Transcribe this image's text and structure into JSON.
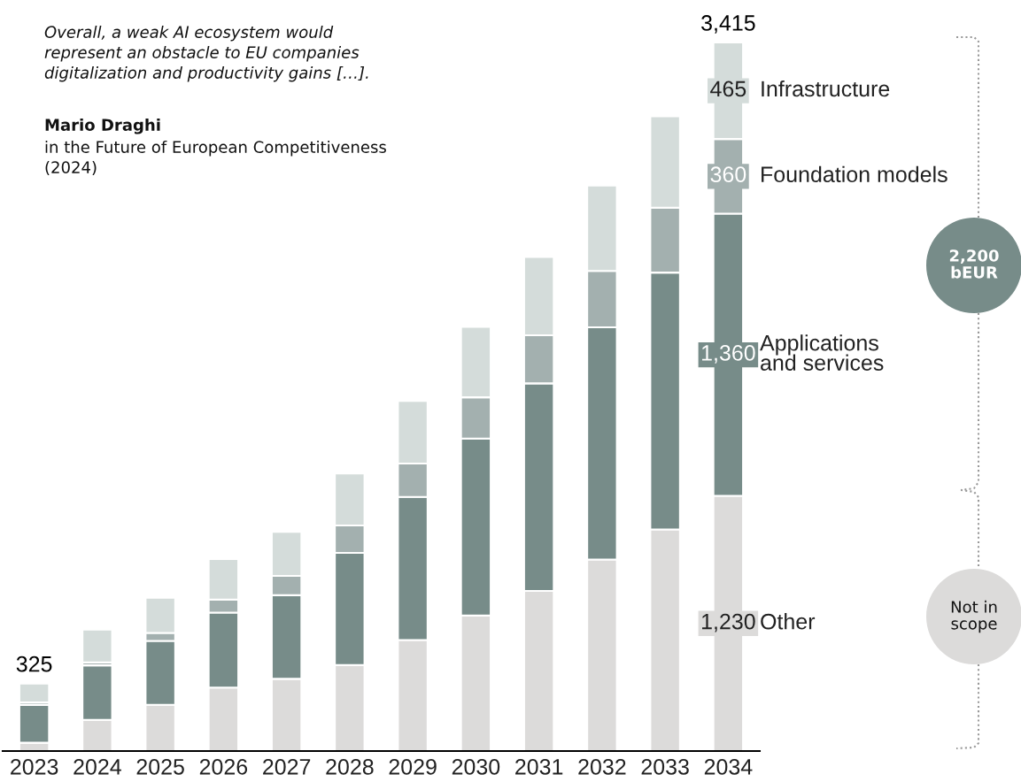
{
  "chart_data": {
    "type": "bar",
    "stacked": true,
    "categories": [
      "2023",
      "2024",
      "2025",
      "2026",
      "2027",
      "2028",
      "2029",
      "2030",
      "2031",
      "2032",
      "2033",
      "2034"
    ],
    "series": [
      {
        "name": "Other",
        "color": "#dcdbda",
        "values": [
          40,
          150,
          223,
          306,
          348,
          415,
          535,
          653,
          772,
          923,
          1068,
          1230
        ],
        "value_labels": [
          null,
          null,
          null,
          null,
          null,
          null,
          null,
          null,
          null,
          null,
          null,
          "1,230"
        ]
      },
      {
        "name": "Applications\nand services",
        "color": "#778c89",
        "values": [
          182,
          263,
          308,
          361,
          403,
          540,
          690,
          853,
          1000,
          1119,
          1238,
          1360
        ],
        "value_labels": [
          null,
          null,
          null,
          null,
          null,
          null,
          null,
          null,
          null,
          null,
          null,
          "1,360"
        ]
      },
      {
        "name": "Foundation models",
        "color": "#a3b0af",
        "values": [
          12,
          14,
          38,
          63,
          93,
          132,
          161,
          199,
          232,
          272,
          313,
          360
        ],
        "value_labels": [
          null,
          null,
          null,
          null,
          null,
          null,
          null,
          null,
          null,
          null,
          null,
          "360"
        ]
      },
      {
        "name": "Infrastructure",
        "color": "#d4dcda",
        "values": [
          91,
          158,
          170,
          195,
          213,
          251,
          302,
          340,
          377,
          412,
          440,
          465
        ],
        "value_labels": [
          null,
          null,
          null,
          null,
          null,
          null,
          null,
          null,
          null,
          null,
          null,
          "465"
        ]
      }
    ],
    "totals": [
      "325",
      null,
      null,
      null,
      null,
      null,
      null,
      null,
      null,
      null,
      null,
      "3,415"
    ],
    "annotations": [
      "Overall, a weak AI ecosystem would\nrepresent an obstacle to EU companies\ndigitalization and productivity gains […].",
      "Mario Draghi",
      "in the Future of European Competitiveness\n(2024)",
      "2,200\nbEUR",
      "Not in\nscope"
    ],
    "grid": false,
    "legend": "right"
  }
}
